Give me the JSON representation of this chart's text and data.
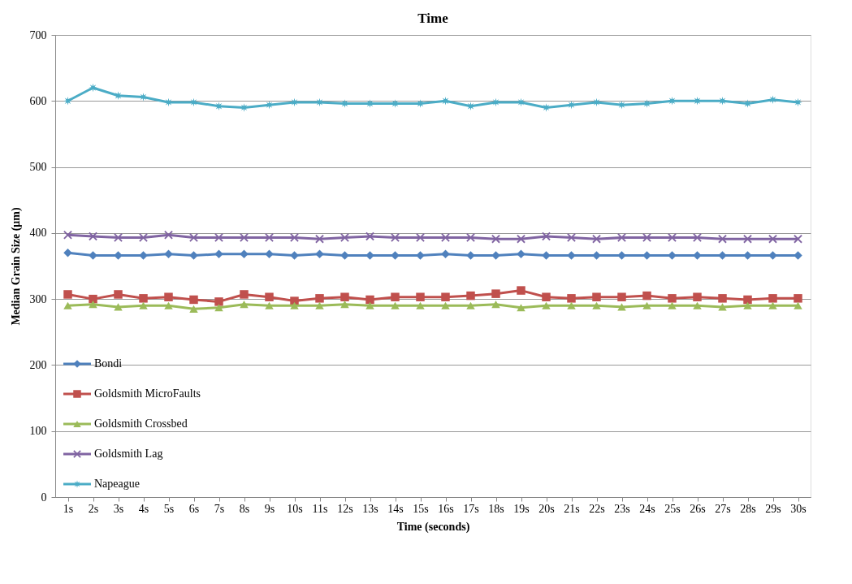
{
  "chart_data": {
    "type": "line",
    "title": "Time",
    "xlabel": "Time (seconds)",
    "ylabel": "Median Grain Size (μm)",
    "categories": [
      "1s",
      "2s",
      "3s",
      "4s",
      "5s",
      "6s",
      "7s",
      "8s",
      "9s",
      "10s",
      "11s",
      "12s",
      "13s",
      "14s",
      "15s",
      "16s",
      "17s",
      "18s",
      "19s",
      "20s",
      "21s",
      "22s",
      "23s",
      "24s",
      "25s",
      "26s",
      "27s",
      "28s",
      "29s",
      "30s"
    ],
    "series": [
      {
        "name": "Bondi",
        "color": "#4f81bd",
        "marker": "diamond",
        "values": [
          370,
          366,
          366,
          366,
          368,
          366,
          368,
          368,
          368,
          366,
          368,
          366,
          366,
          366,
          366,
          368,
          366,
          366,
          368,
          366,
          366,
          366,
          366,
          366,
          366,
          366,
          366,
          366,
          366,
          366
        ]
      },
      {
        "name": "Goldsmith MicroFaults",
        "color": "#c0504d",
        "marker": "square",
        "values": [
          307,
          300,
          307,
          301,
          303,
          299,
          296,
          307,
          303,
          297,
          301,
          303,
          299,
          303,
          303,
          303,
          305,
          308,
          313,
          303,
          301,
          303,
          303,
          305,
          301,
          303,
          301,
          299,
          301,
          301
        ]
      },
      {
        "name": "Goldsmith Crossbed",
        "color": "#9bbb59",
        "marker": "triangle",
        "values": [
          290,
          292,
          288,
          290,
          290,
          285,
          287,
          292,
          290,
          290,
          290,
          292,
          290,
          290,
          290,
          290,
          290,
          292,
          287,
          290,
          290,
          290,
          288,
          290,
          290,
          290,
          288,
          290,
          290,
          290
        ]
      },
      {
        "name": "Goldsmith Lag",
        "color": "#8064a2",
        "marker": "cross",
        "values": [
          397,
          395,
          393,
          393,
          397,
          393,
          393,
          393,
          393,
          393,
          391,
          393,
          395,
          393,
          393,
          393,
          393,
          391,
          391,
          395,
          393,
          391,
          393,
          393,
          393,
          393,
          391,
          391,
          391,
          391
        ]
      },
      {
        "name": "Napeague",
        "color": "#4bacc6",
        "marker": "star",
        "values": [
          600,
          620,
          608,
          606,
          598,
          598,
          592,
          590,
          594,
          598,
          598,
          596,
          596,
          596,
          596,
          600,
          592,
          598,
          598,
          590,
          594,
          598,
          594,
          596,
          600,
          600,
          600,
          596,
          602,
          598
        ]
      }
    ],
    "ylim": [
      0,
      700
    ],
    "yticks": [
      0,
      100,
      200,
      300,
      400,
      500,
      600,
      700
    ],
    "grid": "y",
    "legend": "bottom left",
    "line_style": "solid"
  }
}
